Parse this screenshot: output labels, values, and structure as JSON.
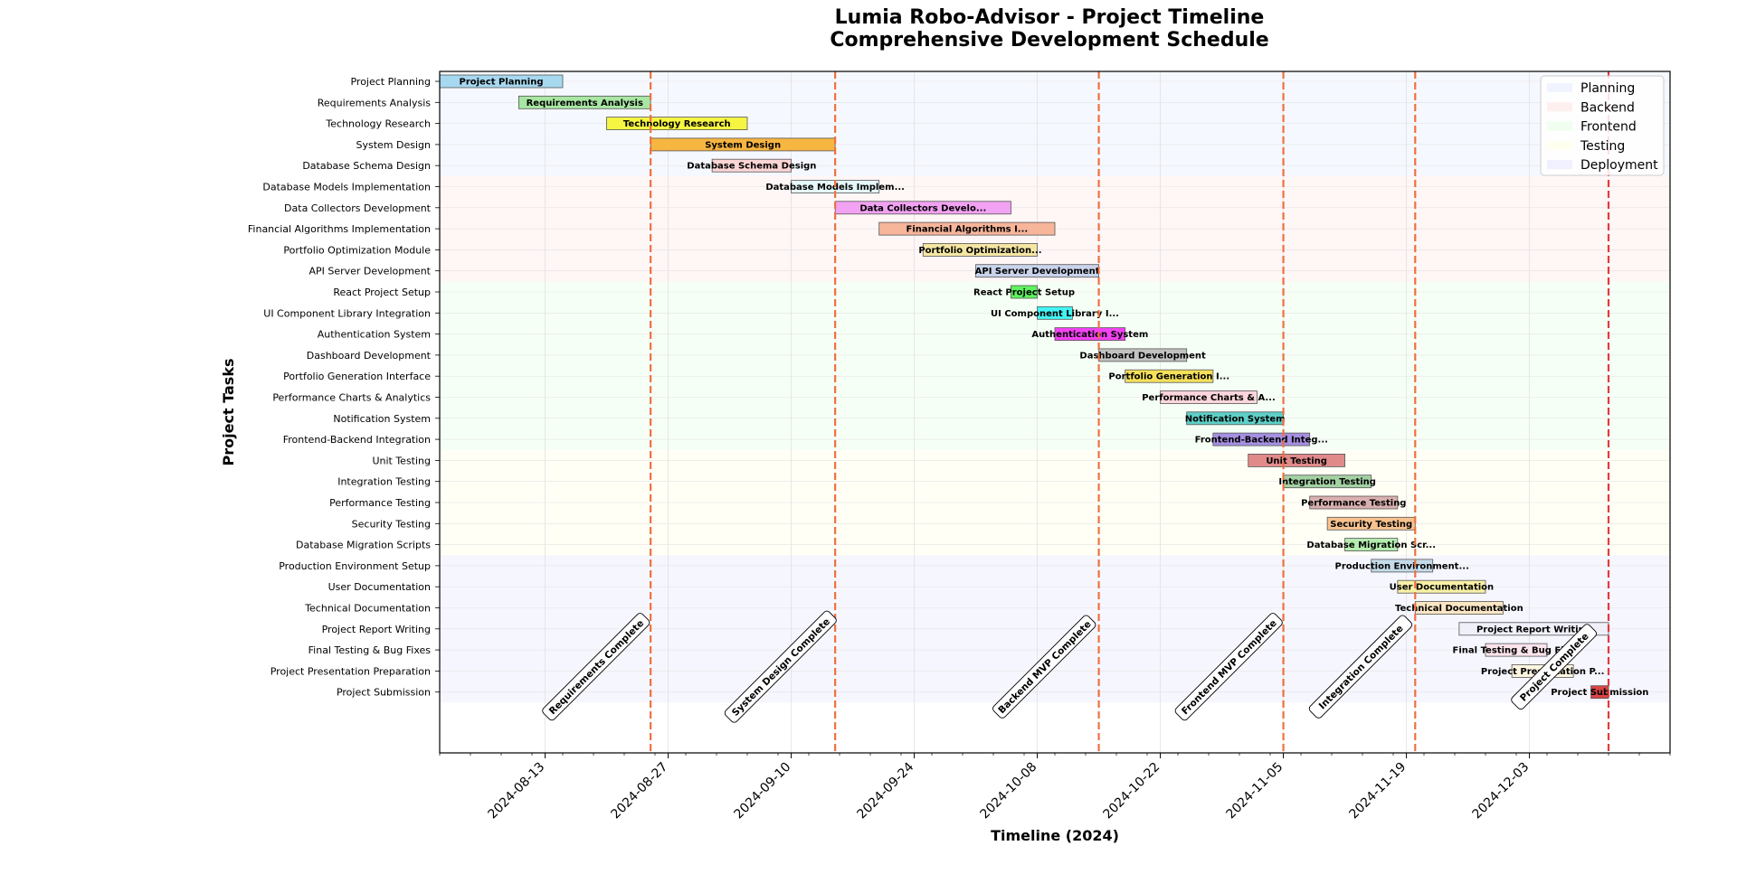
{
  "chart_data": {
    "type": "gantt",
    "title": "Lumia Robo-Advisor - Project Timeline",
    "subtitle": "Comprehensive Development Schedule",
    "xlabel": "Timeline (2024)",
    "ylabel": "Project Tasks",
    "xlim": [
      "2024-08-01",
      "2024-12-19"
    ],
    "x_ticks": [
      "2024-08-13",
      "2024-08-27",
      "2024-09-10",
      "2024-09-24",
      "2024-10-08",
      "2024-10-22",
      "2024-11-05",
      "2024-11-19",
      "2024-12-03"
    ],
    "grid": true,
    "legend_position": "top-right",
    "legend": [
      {
        "label": "Planning",
        "color": "#f0f4ff"
      },
      {
        "label": "Backend",
        "color": "#fff0f0"
      },
      {
        "label": "Frontend",
        "color": "#f0fff0"
      },
      {
        "label": "Testing",
        "color": "#fffff0"
      },
      {
        "label": "Deployment",
        "color": "#f0f0ff"
      }
    ],
    "tasks": [
      {
        "name": "Project Planning",
        "label": "Project Planning",
        "start": "2024-08-01",
        "end": "2024-08-15",
        "color": "#a6d8ef"
      },
      {
        "name": "Requirements Analysis",
        "label": "Requirements Analysis",
        "start": "2024-08-10",
        "end": "2024-08-25",
        "color": "#a8e6a3"
      },
      {
        "name": "Technology Research",
        "label": "Technology Research",
        "start": "2024-08-20",
        "end": "2024-09-05",
        "color": "#f5f542"
      },
      {
        "name": "System Design",
        "label": "System Design",
        "start": "2024-08-25",
        "end": "2024-09-15",
        "color": "#f7b541"
      },
      {
        "name": "Database Schema Design",
        "label": "Database Schema Design",
        "start": "2024-09-01",
        "end": "2024-09-10",
        "color": "#fcd5d5"
      },
      {
        "name": "Database Models Implementation",
        "label": "Database Models Implem...",
        "start": "2024-09-10",
        "end": "2024-09-20",
        "color": "#e6f7f7"
      },
      {
        "name": "Data Collectors Development",
        "label": "Data Collectors Develo...",
        "start": "2024-09-15",
        "end": "2024-10-05",
        "color": "#f2a2f2"
      },
      {
        "name": "Financial Algorithms Implementation",
        "label": "Financial Algorithms I...",
        "start": "2024-09-20",
        "end": "2024-10-10",
        "color": "#f7b59a"
      },
      {
        "name": "Portfolio Optimization Module",
        "label": "Portfolio Optimization...",
        "start": "2024-09-25",
        "end": "2024-10-08",
        "color": "#f5e6a3"
      },
      {
        "name": "API Server Development",
        "label": "API Server Development",
        "start": "2024-10-01",
        "end": "2024-10-15",
        "color": "#c9d3ea"
      },
      {
        "name": "React Project Setup",
        "label": "React Project Setup",
        "start": "2024-10-05",
        "end": "2024-10-08",
        "color": "#5ef25e"
      },
      {
        "name": "UI Component Library Integration",
        "label": "UI Component Library I...",
        "start": "2024-10-08",
        "end": "2024-10-12",
        "color": "#42f5f5"
      },
      {
        "name": "Authentication System",
        "label": "Authentication System",
        "start": "2024-10-10",
        "end": "2024-10-18",
        "color": "#f242f2"
      },
      {
        "name": "Dashboard Development",
        "label": "Dashboard Development",
        "start": "2024-10-15",
        "end": "2024-10-25",
        "color": "#c2c2c2"
      },
      {
        "name": "Portfolio Generation Interface",
        "label": "Portfolio Generation I...",
        "start": "2024-10-18",
        "end": "2024-10-28",
        "color": "#f5e05a"
      },
      {
        "name": "Performance Charts & Analytics",
        "label": "Performance Charts & A...",
        "start": "2024-10-22",
        "end": "2024-11-02",
        "color": "#fcd5dc"
      },
      {
        "name": "Notification System",
        "label": "Notification System",
        "start": "2024-10-25",
        "end": "2024-11-05",
        "color": "#5ecfc7"
      },
      {
        "name": "Frontend-Backend Integration",
        "label": "Frontend-Backend Integ...",
        "start": "2024-10-28",
        "end": "2024-11-08",
        "color": "#a58fe0"
      },
      {
        "name": "Unit Testing",
        "label": "Unit Testing",
        "start": "2024-11-01",
        "end": "2024-11-12",
        "color": "#e08a8a"
      },
      {
        "name": "Integration Testing",
        "label": "Integration Testing",
        "start": "2024-11-05",
        "end": "2024-11-15",
        "color": "#a3d1a3"
      },
      {
        "name": "Performance Testing",
        "label": "Performance Testing",
        "start": "2024-11-08",
        "end": "2024-11-18",
        "color": "#d9b0b0"
      },
      {
        "name": "Security Testing",
        "label": "Security Testing",
        "start": "2024-11-10",
        "end": "2024-11-20",
        "color": "#f7c28f"
      },
      {
        "name": "Database Migration Scripts",
        "label": "Database Migration Scr...",
        "start": "2024-11-12",
        "end": "2024-11-18",
        "color": "#b3ecae"
      },
      {
        "name": "Production Environment Setup",
        "label": "Production Environment...",
        "start": "2024-11-15",
        "end": "2024-11-22",
        "color": "#c4dbe8"
      },
      {
        "name": "User Documentation",
        "label": "User Documentation",
        "start": "2024-11-18",
        "end": "2024-11-28",
        "color": "#f7f0a6"
      },
      {
        "name": "Technical Documentation",
        "label": "Technical Documentation",
        "start": "2024-11-20",
        "end": "2024-11-30",
        "color": "#fbe6c4"
      },
      {
        "name": "Project Report Writing",
        "label": "Project Report Writing",
        "start": "2024-11-25",
        "end": "2024-12-12",
        "color": "#f0f0fa"
      },
      {
        "name": "Final Testing & Bug Fixes",
        "label": "Final Testing & Bug Fix...",
        "start": "2024-11-28",
        "end": "2024-12-05",
        "color": "#fce4ec"
      },
      {
        "name": "Project Presentation Preparation",
        "label": "Project Presentation P...",
        "start": "2024-12-01",
        "end": "2024-12-08",
        "color": "#fdf5e0"
      },
      {
        "name": "Project Submission",
        "label": "Project Submission",
        "start": "2024-12-10",
        "end": "2024-12-12",
        "color": "#d94545"
      }
    ],
    "milestones": [
      {
        "label": "Requirements Complete",
        "date": "2024-08-25",
        "color": "#f07040"
      },
      {
        "label": "System Design Complete",
        "date": "2024-09-15",
        "color": "#f07040"
      },
      {
        "label": "Backend MVP Complete",
        "date": "2024-10-15",
        "color": "#f07040"
      },
      {
        "label": "Frontend MVP Complete",
        "date": "2024-11-05",
        "color": "#f07040"
      },
      {
        "label": "Integration Complete",
        "date": "2024-11-20",
        "color": "#f07040"
      },
      {
        "label": "Project Complete",
        "date": "2024-12-12",
        "color": "#e03c3c"
      }
    ]
  }
}
